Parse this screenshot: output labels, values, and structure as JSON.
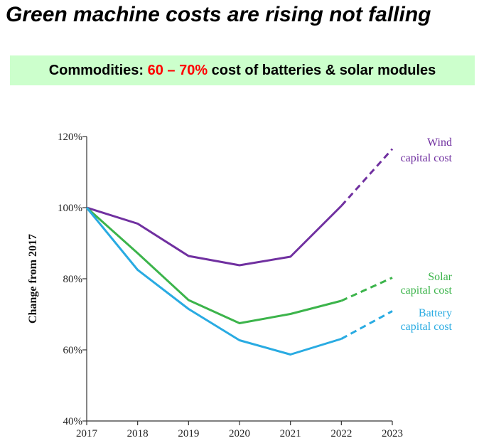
{
  "title": "Green machine costs are rising not falling",
  "banner": {
    "prefix": "Commodities: ",
    "highlight": "60 – 70%",
    "suffix": " cost of batteries & solar modules",
    "highlight_color": "#ff0000",
    "background": "#ccffcc"
  },
  "chart_data": {
    "type": "line",
    "title": "",
    "xlabel": "",
    "ylabel": "Change from 2017",
    "x": [
      "2017",
      "2018",
      "2019",
      "2020",
      "2021",
      "2022",
      "2023"
    ],
    "yticks": [
      "40%",
      "60%",
      "80%",
      "100%",
      "120%"
    ],
    "ylim": [
      40,
      120
    ],
    "grid": false,
    "projected_from": "2022",
    "series": [
      {
        "name": "Wind capital cost",
        "label_lines": [
          "Wind",
          "capital cost"
        ],
        "color": "#7030a0",
        "values": [
          100,
          95.5,
          86.4,
          83.8,
          86.2,
          100.5,
          116.5
        ]
      },
      {
        "name": "Solar capital cost",
        "label_lines": [
          "Solar",
          "capital cost"
        ],
        "color": "#3cb44b",
        "values": [
          100,
          87.2,
          74.0,
          67.5,
          70.1,
          73.8,
          80.3
        ]
      },
      {
        "name": "Battery capital cost",
        "label_lines": [
          "Battery",
          "capital cost"
        ],
        "color": "#29abe2",
        "values": [
          100,
          82.5,
          71.5,
          62.7,
          58.7,
          63.1,
          70.9
        ]
      }
    ]
  }
}
